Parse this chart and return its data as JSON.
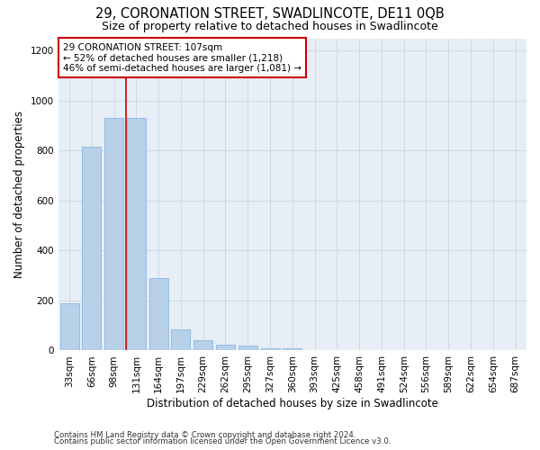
{
  "title": "29, CORONATION STREET, SWADLINCOTE, DE11 0QB",
  "subtitle": "Size of property relative to detached houses in Swadlincote",
  "xlabel": "Distribution of detached houses by size in Swadlincote",
  "ylabel": "Number of detached properties",
  "footer_line1": "Contains HM Land Registry data © Crown copyright and database right 2024.",
  "footer_line2": "Contains public sector information licensed under the Open Government Licence v3.0.",
  "bar_labels": [
    "33sqm",
    "66sqm",
    "98sqm",
    "131sqm",
    "164sqm",
    "197sqm",
    "229sqm",
    "262sqm",
    "295sqm",
    "327sqm",
    "360sqm",
    "393sqm",
    "425sqm",
    "458sqm",
    "491sqm",
    "524sqm",
    "556sqm",
    "589sqm",
    "622sqm",
    "654sqm",
    "687sqm"
  ],
  "bar_values": [
    190,
    815,
    930,
    930,
    290,
    85,
    40,
    25,
    18,
    10,
    10,
    0,
    0,
    0,
    0,
    0,
    0,
    0,
    0,
    0,
    0
  ],
  "bar_color": "#b8d0e8",
  "bar_edgecolor": "#7aafe6",
  "grid_color": "#cdd8e8",
  "background_color": "#e8eef5",
  "annotation_box_text": "29 CORONATION STREET: 107sqm\n← 52% of detached houses are smaller (1,218)\n46% of semi-detached houses are larger (1,081) →",
  "annotation_box_edgecolor": "#cc0000",
  "vline_x": 2.55,
  "vline_color": "#cc0000",
  "ylim": [
    0,
    1250
  ],
  "yticks": [
    0,
    200,
    400,
    600,
    800,
    1000,
    1200
  ],
  "title_fontsize": 10.5,
  "subtitle_fontsize": 9,
  "ylabel_fontsize": 8.5,
  "xlabel_fontsize": 8.5,
  "tick_fontsize": 7.5,
  "annotation_fontsize": 7.5,
  "footer_fontsize": 6.2
}
